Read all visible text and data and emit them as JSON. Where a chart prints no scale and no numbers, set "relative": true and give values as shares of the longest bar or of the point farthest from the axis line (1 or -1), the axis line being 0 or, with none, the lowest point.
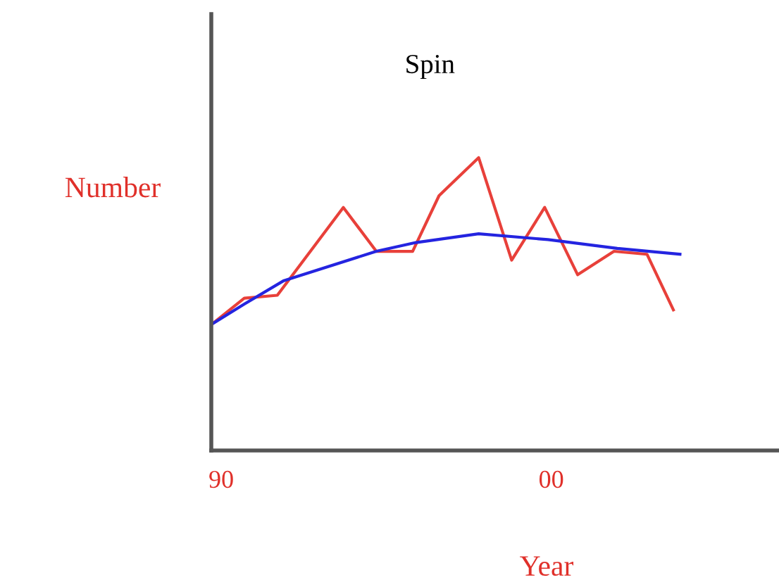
{
  "chart_data": {
    "type": "line",
    "title": "Spin",
    "xlabel": "Year",
    "ylabel": "Number",
    "relative": true,
    "xlim": [
      1989.7,
      2006.9
    ],
    "xticks": [
      {
        "value": 1990,
        "label": "90"
      },
      {
        "value": 2000,
        "label": "00"
      }
    ],
    "grid": false,
    "legend": false,
    "marker": "none",
    "line_style": "solid",
    "series": [
      {
        "color": "#e8403a",
        "x": [
          1989.7,
          1990.7,
          1991.7,
          1993.7,
          1994.7,
          1995.8,
          1996.6,
          1997.8,
          1998.8,
          1999.8,
          2000.8,
          2001.9,
          2002.9,
          2003.7
        ],
        "values": [
          0.43,
          0.52,
          0.53,
          0.83,
          0.68,
          0.68,
          0.87,
          1,
          0.65,
          0.83,
          0.6,
          0.68,
          0.67,
          0.48
        ]
      },
      {
        "color": "#2424e0",
        "x": [
          1989.7,
          1990.7,
          1991.9,
          1994.7,
          1995.9,
          1997.8,
          1999.9,
          2002.0,
          2003.9
        ],
        "values": [
          0.43,
          0.5,
          0.58,
          0.68,
          0.71,
          0.74,
          0.72,
          0.69,
          0.67
        ]
      }
    ]
  }
}
